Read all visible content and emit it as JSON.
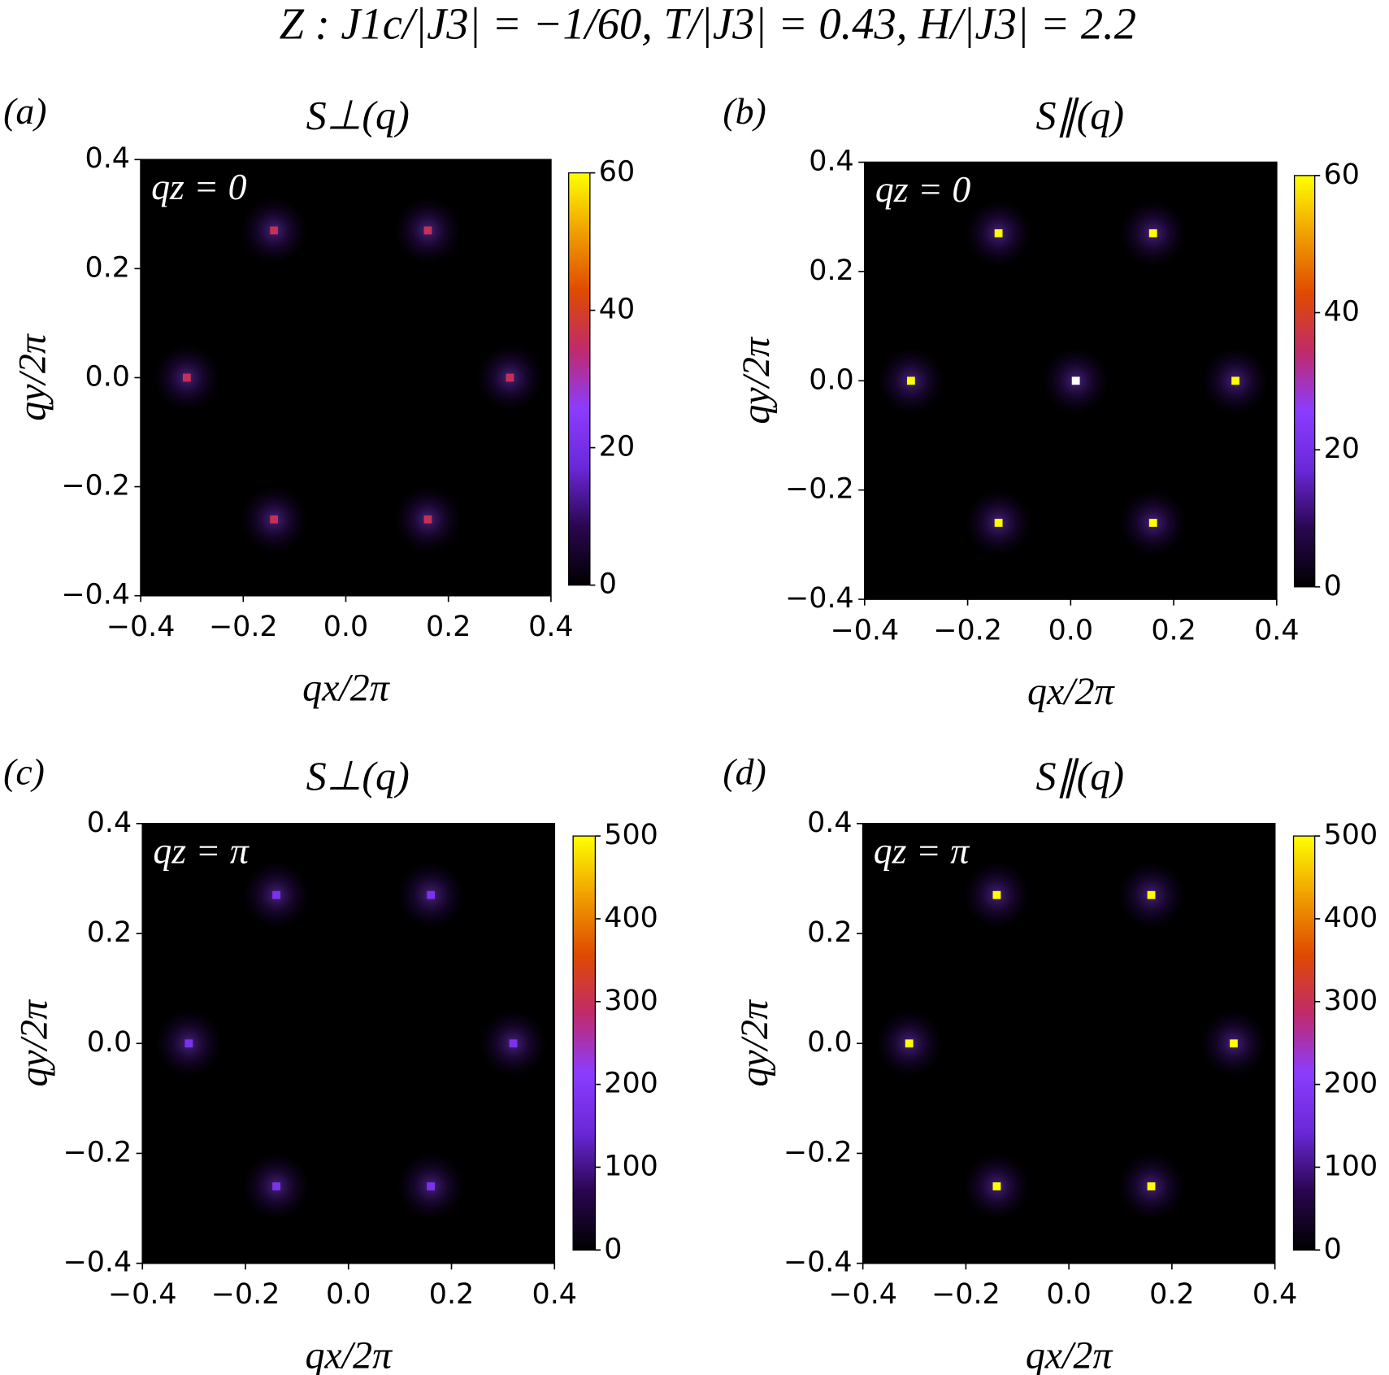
{
  "title": "Z :  J1c/|J3| = −1/60,  T/|J3| = 0.43,  H/|J3| = 2.2",
  "chart_data": [
    {
      "type": "heatmap",
      "panel_label": "(a)",
      "title": "S⊥(q)",
      "annotation": "qz = 0",
      "xlabel": "qx/2π",
      "ylabel": "qy/2π",
      "xlim": [
        -0.4,
        0.4
      ],
      "ylim": [
        -0.4,
        0.4
      ],
      "xticks": [
        {
          "value": -0.4,
          "label": "−0.4"
        },
        {
          "value": -0.2,
          "label": "−0.2"
        },
        {
          "value": 0,
          "label": "0.0"
        },
        0.2,
        0.4
      ],
      "yticks": [
        {
          "value": -0.4,
          "label": "−0.4"
        },
        {
          "value": -0.2,
          "label": "−0.2"
        },
        {
          "value": 0,
          "label": "0.0"
        },
        0.2,
        0.4
      ],
      "points": {
        "x": [
          -0.14,
          0.16,
          -0.31,
          0.32,
          -0.14,
          0.16
        ],
        "y": [
          0.27,
          0.27,
          0.0,
          0.0,
          -0.26,
          -0.26
        ],
        "values": [
          36,
          36,
          36,
          36,
          36,
          36
        ]
      },
      "clim": [
        0,
        60
      ],
      "cticks": [
        0,
        20,
        40,
        60
      ],
      "colormap": [
        "#000000",
        "#2a0650",
        "#6a28d8",
        "#8b3cff",
        "#c02a6a",
        "#e04a00",
        "#f0a000",
        "#ffff00"
      ],
      "background": "#000000"
    },
    {
      "type": "heatmap",
      "panel_label": "(b)",
      "title": "S∥(q)",
      "annotation": "qz = 0",
      "xlabel": "qx/2π",
      "ylabel": "qy/2π",
      "xlim": [
        -0.4,
        0.4
      ],
      "ylim": [
        -0.4,
        0.4
      ],
      "xticks": [
        {
          "value": -0.4,
          "label": "−0.4"
        },
        {
          "value": -0.2,
          "label": "−0.2"
        },
        {
          "value": 0,
          "label": "0.0"
        },
        0.2,
        0.4
      ],
      "yticks": [
        {
          "value": -0.4,
          "label": "−0.4"
        },
        {
          "value": -0.2,
          "label": "−0.2"
        },
        {
          "value": 0,
          "label": "0.0"
        },
        0.2,
        0.4
      ],
      "points": {
        "x": [
          -0.14,
          0.16,
          -0.31,
          0.32,
          -0.14,
          0.16,
          0.01
        ],
        "y": [
          0.27,
          0.27,
          0.0,
          0.0,
          -0.26,
          -0.26,
          0.0
        ],
        "values": [
          60,
          60,
          60,
          60,
          60,
          60,
          80
        ]
      },
      "clim": [
        0,
        60
      ],
      "cticks": [
        0,
        20,
        40,
        60
      ],
      "colormap": [
        "#000000",
        "#2a0650",
        "#6a28d8",
        "#8b3cff",
        "#c02a6a",
        "#e04a00",
        "#f0a000",
        "#ffff00"
      ],
      "over_color": "#ffffff",
      "background": "#000000"
    },
    {
      "type": "heatmap",
      "panel_label": "(c)",
      "title": "S⊥(q)",
      "annotation": "qz = π",
      "xlabel": "qx/2π",
      "ylabel": "qy/2π",
      "xlim": [
        -0.4,
        0.4
      ],
      "ylim": [
        -0.4,
        0.4
      ],
      "xticks": [
        {
          "value": -0.4,
          "label": "−0.4"
        },
        {
          "value": -0.2,
          "label": "−0.2"
        },
        {
          "value": 0,
          "label": "0.0"
        },
        0.2,
        0.4
      ],
      "yticks": [
        {
          "value": -0.4,
          "label": "−0.4"
        },
        {
          "value": -0.2,
          "label": "−0.2"
        },
        {
          "value": 0,
          "label": "0.0"
        },
        0.2,
        0.4
      ],
      "points": {
        "x": [
          -0.14,
          0.16,
          -0.31,
          0.32,
          -0.14,
          0.16
        ],
        "y": [
          0.27,
          0.27,
          0.0,
          0.0,
          -0.26,
          -0.26
        ],
        "values": [
          180,
          180,
          180,
          180,
          180,
          180
        ]
      },
      "clim": [
        0,
        500
      ],
      "cticks": [
        0,
        100,
        200,
        300,
        400,
        500
      ],
      "colormap": [
        "#000000",
        "#2a0650",
        "#6a28d8",
        "#8b3cff",
        "#c02a6a",
        "#e04a00",
        "#f0a000",
        "#ffff00"
      ],
      "background": "#000000"
    },
    {
      "type": "heatmap",
      "panel_label": "(d)",
      "title": "S∥(q)",
      "annotation": "qz = π",
      "xlabel": "qx/2π",
      "ylabel": "qy/2π",
      "xlim": [
        -0.4,
        0.4
      ],
      "ylim": [
        -0.4,
        0.4
      ],
      "xticks": [
        {
          "value": -0.4,
          "label": "−0.4"
        },
        {
          "value": -0.2,
          "label": "−0.2"
        },
        {
          "value": 0,
          "label": "0.0"
        },
        0.2,
        0.4
      ],
      "yticks": [
        {
          "value": -0.4,
          "label": "−0.4"
        },
        {
          "value": -0.2,
          "label": "−0.2"
        },
        {
          "value": 0,
          "label": "0.0"
        },
        0.2,
        0.4
      ],
      "points": {
        "x": [
          -0.14,
          0.16,
          -0.31,
          0.32,
          -0.14,
          0.16
        ],
        "y": [
          0.27,
          0.27,
          0.0,
          0.0,
          -0.26,
          -0.26
        ],
        "values": [
          500,
          500,
          500,
          500,
          500,
          500
        ]
      },
      "clim": [
        0,
        500
      ],
      "cticks": [
        0,
        100,
        200,
        300,
        400,
        500
      ],
      "colormap": [
        "#000000",
        "#2a0650",
        "#6a28d8",
        "#8b3cff",
        "#c02a6a",
        "#e04a00",
        "#f0a000",
        "#ffff00"
      ],
      "background": "#000000"
    }
  ]
}
